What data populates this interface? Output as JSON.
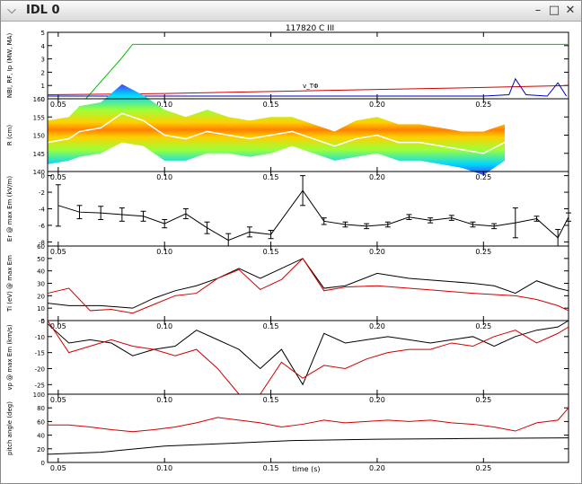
{
  "window": {
    "title": "IDL 0",
    "buttons": {
      "menu_icon": "chevron-down-icon",
      "minimize_icon": "minimize-icon",
      "maximize_icon": "maximize-icon",
      "close_icon": "close-icon"
    }
  },
  "figure": {
    "title": "117820 C III",
    "x_label": "time (s)",
    "x_ticks": [
      "0.05",
      "0.10",
      "0.15",
      "0.20",
      "0.25"
    ]
  },
  "chart_data": [
    {
      "type": "line",
      "ylabel": "NBI, RF, Ip (MW, MA)",
      "yticks": [
        "0",
        "1",
        "2",
        "3",
        "4",
        "5"
      ],
      "ylim": [
        0,
        5
      ],
      "annotation": "v_TΦ",
      "colors": {
        "ip": "#00c000",
        "rf": "#d00000",
        "nbi": "#0000c0"
      },
      "series": [
        {
          "key": "ip",
          "x": [
            0.045,
            0.063,
            0.08,
            0.085,
            0.1,
            0.15,
            0.2,
            0.25,
            0.29
          ],
          "values": [
            0,
            0,
            3.1,
            4.1,
            4.1,
            4.1,
            4.1,
            4.1,
            4.1
          ]
        },
        {
          "key": "rf",
          "x": [
            0.045,
            0.1,
            0.15,
            0.2,
            0.25,
            0.29
          ],
          "values": [
            0.3,
            0.4,
            0.55,
            0.7,
            0.85,
            1.0
          ]
        },
        {
          "key": "nbi",
          "x": [
            0.045,
            0.15,
            0.25,
            0.262,
            0.265,
            0.27,
            0.28,
            0.285,
            0.289
          ],
          "values": [
            0.2,
            0.2,
            0.2,
            0.3,
            1.5,
            0.3,
            0.2,
            1.2,
            0.2
          ]
        }
      ]
    },
    {
      "type": "heatmap",
      "ylabel": "R (cm)",
      "yticks": [
        "140",
        "145",
        "150",
        "155",
        "160"
      ],
      "ylim": [
        140,
        160
      ],
      "profile": {
        "x": [
          0.045,
          0.055,
          0.06,
          0.07,
          0.08,
          0.09,
          0.1,
          0.11,
          0.12,
          0.13,
          0.14,
          0.15,
          0.16,
          0.17,
          0.18,
          0.19,
          0.2,
          0.21,
          0.22,
          0.23,
          0.24,
          0.25,
          0.26
        ],
        "center": [
          148,
          149,
          151,
          152,
          156,
          154,
          150,
          149,
          151,
          150,
          149,
          150,
          151,
          149,
          147,
          149,
          150,
          148,
          148,
          147,
          146,
          145,
          148
        ],
        "half_width": [
          6,
          6,
          7,
          7,
          8,
          7,
          7,
          6,
          6,
          5,
          5,
          5,
          4,
          4,
          4,
          5,
          5,
          5,
          5,
          5,
          5,
          6,
          5
        ]
      }
    },
    {
      "type": "line",
      "ylabel": "Er @ max Em (kV/m)",
      "yticks": [
        "-8",
        "-6",
        "-4",
        "-2",
        "0"
      ],
      "ylim": [
        -8.5,
        0.5
      ],
      "series": [
        {
          "x": [
            0.05,
            0.06,
            0.07,
            0.08,
            0.09,
            0.1,
            0.11,
            0.12,
            0.13,
            0.14,
            0.15,
            0.165,
            0.175,
            0.185,
            0.195,
            0.205,
            0.215,
            0.225,
            0.235,
            0.245,
            0.255,
            0.265,
            0.275,
            0.285,
            0.29
          ],
          "values": [
            -3.6,
            -4.4,
            -4.5,
            -4.7,
            -4.9,
            -5.8,
            -4.6,
            -6.3,
            -7.8,
            -6.8,
            -7.1,
            -1.8,
            -5.5,
            -5.9,
            -6.1,
            -5.9,
            -5.0,
            -5.4,
            -5.1,
            -5.9,
            -6.1,
            -5.7,
            -5.2,
            -7.5,
            -5.0
          ],
          "errors": [
            2.5,
            0.8,
            0.8,
            0.8,
            0.6,
            0.5,
            0.6,
            0.7,
            0.8,
            0.6,
            0.5,
            1.8,
            0.4,
            0.3,
            0.3,
            0.3,
            0.3,
            0.3,
            0.3,
            0.3,
            0.3,
            1.8,
            0.3,
            1.0,
            0.5
          ]
        }
      ]
    },
    {
      "type": "line",
      "ylabel": "Ti (eV) @ max Em",
      "yticks": [
        "0",
        "10",
        "20",
        "30",
        "40",
        "50",
        "60"
      ],
      "ylim": [
        0,
        60
      ],
      "colors": {
        "black": "#000000",
        "red": "#d00000"
      },
      "series": [
        {
          "key": "black",
          "x": [
            0.045,
            0.055,
            0.07,
            0.085,
            0.095,
            0.105,
            0.115,
            0.125,
            0.135,
            0.145,
            0.155,
            0.165,
            0.175,
            0.185,
            0.2,
            0.215,
            0.23,
            0.245,
            0.255,
            0.265,
            0.275,
            0.285,
            0.29
          ],
          "values": [
            14,
            12,
            12,
            10,
            18,
            24,
            28,
            34,
            42,
            34,
            42,
            50,
            26,
            28,
            38,
            34,
            32,
            30,
            28,
            22,
            32,
            26,
            24
          ]
        },
        {
          "key": "red",
          "x": [
            0.045,
            0.055,
            0.065,
            0.075,
            0.085,
            0.095,
            0.105,
            0.115,
            0.125,
            0.135,
            0.145,
            0.155,
            0.165,
            0.175,
            0.185,
            0.2,
            0.215,
            0.23,
            0.245,
            0.255,
            0.265,
            0.275,
            0.285,
            0.29
          ],
          "values": [
            22,
            26,
            8,
            9,
            6,
            13,
            20,
            22,
            34,
            41,
            25,
            33,
            50,
            24,
            27,
            28,
            26,
            24,
            22,
            21,
            20,
            17,
            12,
            8
          ]
        }
      ]
    },
    {
      "type": "line",
      "ylabel": "vp @ max Em (km/s)",
      "yticks": [
        "-25",
        "-20",
        "-15",
        "-10",
        "-5"
      ],
      "ylim": [
        -28,
        -5
      ],
      "colors": {
        "black": "#000000",
        "red": "#d00000"
      },
      "series": [
        {
          "key": "black",
          "x": [
            0.045,
            0.055,
            0.065,
            0.075,
            0.085,
            0.095,
            0.105,
            0.115,
            0.125,
            0.135,
            0.145,
            0.155,
            0.165,
            0.175,
            0.185,
            0.195,
            0.205,
            0.215,
            0.225,
            0.235,
            0.245,
            0.255,
            0.265,
            0.275,
            0.285,
            0.29
          ],
          "values": [
            -6,
            -12,
            -11,
            -12,
            -16,
            -14,
            -13,
            -8,
            -11,
            -14,
            -20,
            -14,
            -25,
            -9,
            -12,
            -11,
            -10,
            -11,
            -12,
            -11,
            -10,
            -13,
            -10,
            -8,
            -7,
            -5
          ]
        },
        {
          "key": "red",
          "x": [
            0.045,
            0.055,
            0.065,
            0.075,
            0.085,
            0.095,
            0.105,
            0.115,
            0.125,
            0.135,
            0.145,
            0.155,
            0.165,
            0.175,
            0.185,
            0.195,
            0.205,
            0.215,
            0.225,
            0.235,
            0.245,
            0.255,
            0.265,
            0.275,
            0.285,
            0.29
          ],
          "values": [
            -5,
            -15,
            -13,
            -11,
            -13,
            -14,
            -16,
            -14,
            -20,
            -29,
            -29,
            -18,
            -23,
            -19,
            -20,
            -17,
            -15,
            -14,
            -14,
            -12,
            -13,
            -10,
            -8,
            -12,
            -9,
            -7
          ]
        }
      ]
    },
    {
      "type": "line",
      "ylabel": "pitch angle (deg)",
      "yticks": [
        "0",
        "20",
        "40",
        "60",
        "80",
        "100"
      ],
      "ylim": [
        0,
        100
      ],
      "colors": {
        "black": "#000000",
        "red": "#d00000"
      },
      "series": [
        {
          "key": "black",
          "x": [
            0.045,
            0.07,
            0.1,
            0.13,
            0.16,
            0.2,
            0.24,
            0.29
          ],
          "values": [
            12,
            15,
            24,
            28,
            32,
            34,
            35,
            36
          ]
        },
        {
          "key": "red",
          "x": [
            0.045,
            0.055,
            0.065,
            0.075,
            0.085,
            0.095,
            0.105,
            0.115,
            0.125,
            0.135,
            0.145,
            0.155,
            0.165,
            0.175,
            0.185,
            0.195,
            0.205,
            0.215,
            0.225,
            0.235,
            0.245,
            0.255,
            0.265,
            0.275,
            0.285,
            0.29
          ],
          "values": [
            55,
            55,
            52,
            48,
            45,
            48,
            52,
            58,
            66,
            62,
            58,
            52,
            56,
            62,
            58,
            60,
            62,
            60,
            62,
            58,
            56,
            52,
            46,
            58,
            62,
            80
          ]
        }
      ]
    }
  ]
}
